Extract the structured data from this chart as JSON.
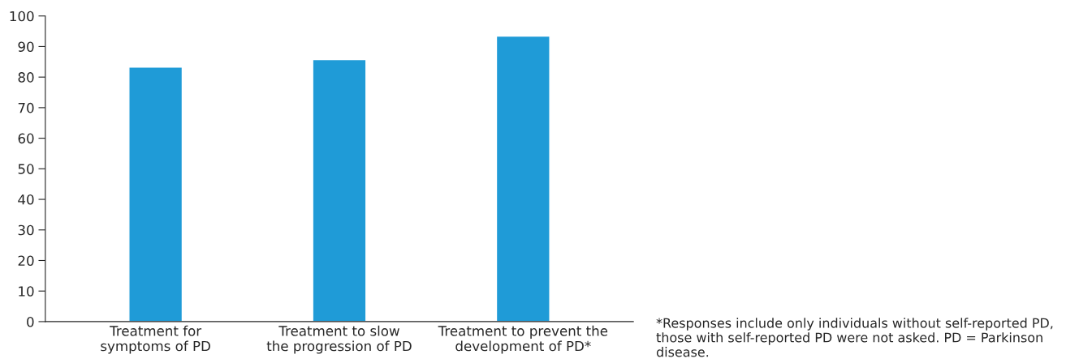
{
  "chart_data": {
    "type": "bar",
    "categories": [
      "Treatment for\nsymptoms of PD",
      "Treatment to slow\nthe progression of PD",
      "Treatment to prevent the\ndevelopment of PD*"
    ],
    "values": [
      83.3,
      85.7,
      93.4
    ],
    "color": "#1f9bd7",
    "ylim": [
      0,
      100
    ],
    "yticks": [
      0,
      10,
      20,
      30,
      40,
      50,
      60,
      70,
      80,
      90,
      100
    ],
    "grid": false,
    "legend": false,
    "annotations": [
      "*Responses include only individuals without self-reported PD, those with self-reported PD were not asked. PD = Parkinson disease."
    ]
  }
}
